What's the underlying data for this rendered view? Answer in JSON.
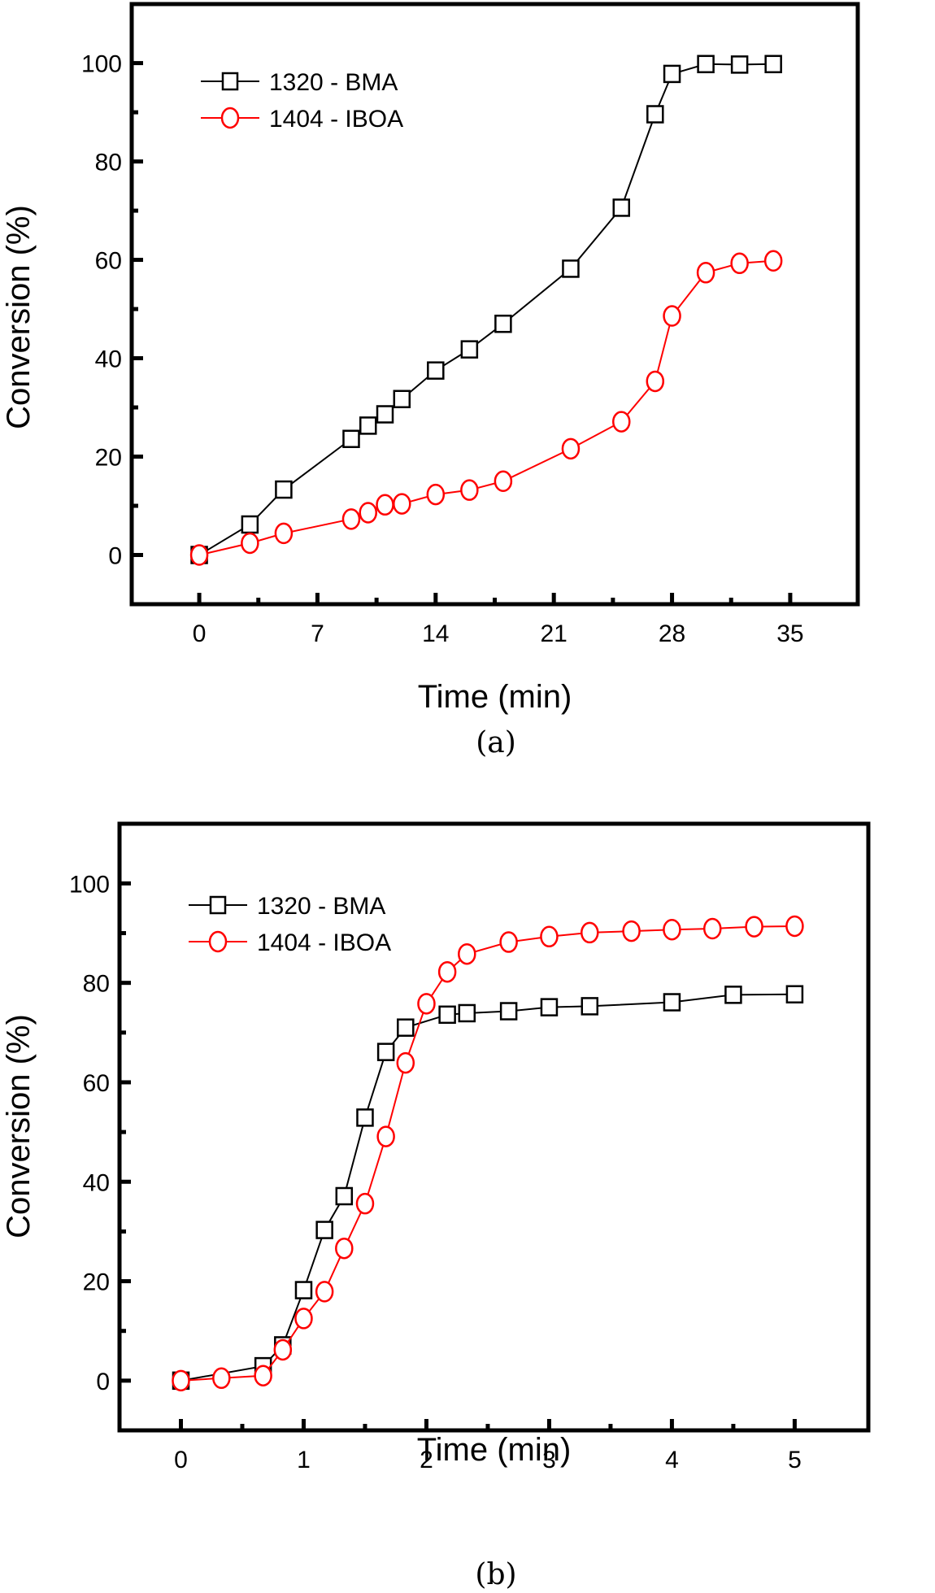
{
  "chart_data": [
    {
      "panel": "(a)",
      "type": "line",
      "title": "",
      "caption": "(a)",
      "xlabel": "Time (min)",
      "ylabel": "Conversion (%)",
      "xlim": [
        -4,
        39
      ],
      "ylim": [
        -10,
        112
      ],
      "xticks": [
        0,
        7,
        14,
        21,
        28,
        35
      ],
      "xtick_labels": [
        "0",
        "7",
        "14",
        "21",
        "28",
        "35"
      ],
      "yticks": [
        0,
        20,
        40,
        60,
        80,
        100
      ],
      "ytick_labels": [
        "0",
        "20",
        "40",
        "60",
        "80",
        "100"
      ],
      "grid": false,
      "legend_position": "top-left",
      "series": [
        {
          "name": "1320 - BMA",
          "marker": "square",
          "color": "#000000",
          "x": [
            0,
            3,
            5,
            9,
            10,
            11,
            12,
            14,
            16,
            18,
            22,
            25,
            27,
            28,
            30,
            32,
            34
          ],
          "y": [
            0,
            6.2,
            13.3,
            23.6,
            26.3,
            28.6,
            31.7,
            37.5,
            41.8,
            47.0,
            58.2,
            70.6,
            89.6,
            97.8,
            99.8,
            99.7,
            99.8
          ]
        },
        {
          "name": "1404 - IBOA",
          "marker": "circle",
          "color": "#ff0000",
          "x": [
            0,
            3,
            5,
            9,
            10,
            11,
            12,
            14,
            16,
            18,
            22,
            25,
            27,
            28,
            30,
            32,
            34
          ],
          "y": [
            0,
            2.4,
            4.4,
            7.3,
            8.6,
            10.2,
            10.4,
            12.3,
            13.2,
            15.0,
            21.6,
            27.1,
            35.3,
            48.6,
            57.4,
            59.3,
            59.8
          ]
        }
      ]
    },
    {
      "panel": "(b)",
      "type": "line",
      "title": "",
      "caption": "(b)",
      "xlabel": "Time (min)",
      "ylabel": "Conversion (%)",
      "xlim": [
        -0.5,
        5.6
      ],
      "ylim": [
        -10,
        112
      ],
      "xticks": [
        0,
        1,
        2,
        3,
        4,
        5
      ],
      "xtick_labels": [
        "0",
        "1",
        "2",
        "3",
        "4",
        "5"
      ],
      "yticks": [
        0,
        20,
        40,
        60,
        80,
        100
      ],
      "ytick_labels": [
        "0",
        "20",
        "40",
        "60",
        "80",
        "100"
      ],
      "grid": false,
      "legend_position": "top-left",
      "series": [
        {
          "name": "1320 - BMA",
          "marker": "square",
          "color": "#000000",
          "x": [
            0,
            0.67,
            0.83,
            1.0,
            1.17,
            1.33,
            1.5,
            1.67,
            1.83,
            2.17,
            2.33,
            2.67,
            3.0,
            3.33,
            4.0,
            4.5,
            5.0
          ],
          "y": [
            0,
            2.9,
            7.1,
            18.2,
            30.3,
            37.1,
            52.9,
            66.1,
            71.0,
            73.6,
            73.9,
            74.3,
            75.1,
            75.3,
            76.1,
            77.6,
            77.7
          ]
        },
        {
          "name": "1404 - IBOA",
          "marker": "circle",
          "color": "#ff0000",
          "x": [
            0,
            0.33,
            0.67,
            0.83,
            1.0,
            1.17,
            1.33,
            1.5,
            1.67,
            1.83,
            2.0,
            2.17,
            2.33,
            2.67,
            3.0,
            3.33,
            3.67,
            4.0,
            4.33,
            4.67,
            5.0
          ],
          "y": [
            0,
            0.5,
            1.0,
            6.2,
            12.5,
            17.9,
            26.6,
            35.6,
            49.1,
            63.9,
            75.8,
            82.2,
            85.8,
            88.2,
            89.3,
            90.1,
            90.4,
            90.7,
            90.9,
            91.3,
            91.4
          ]
        }
      ]
    }
  ]
}
